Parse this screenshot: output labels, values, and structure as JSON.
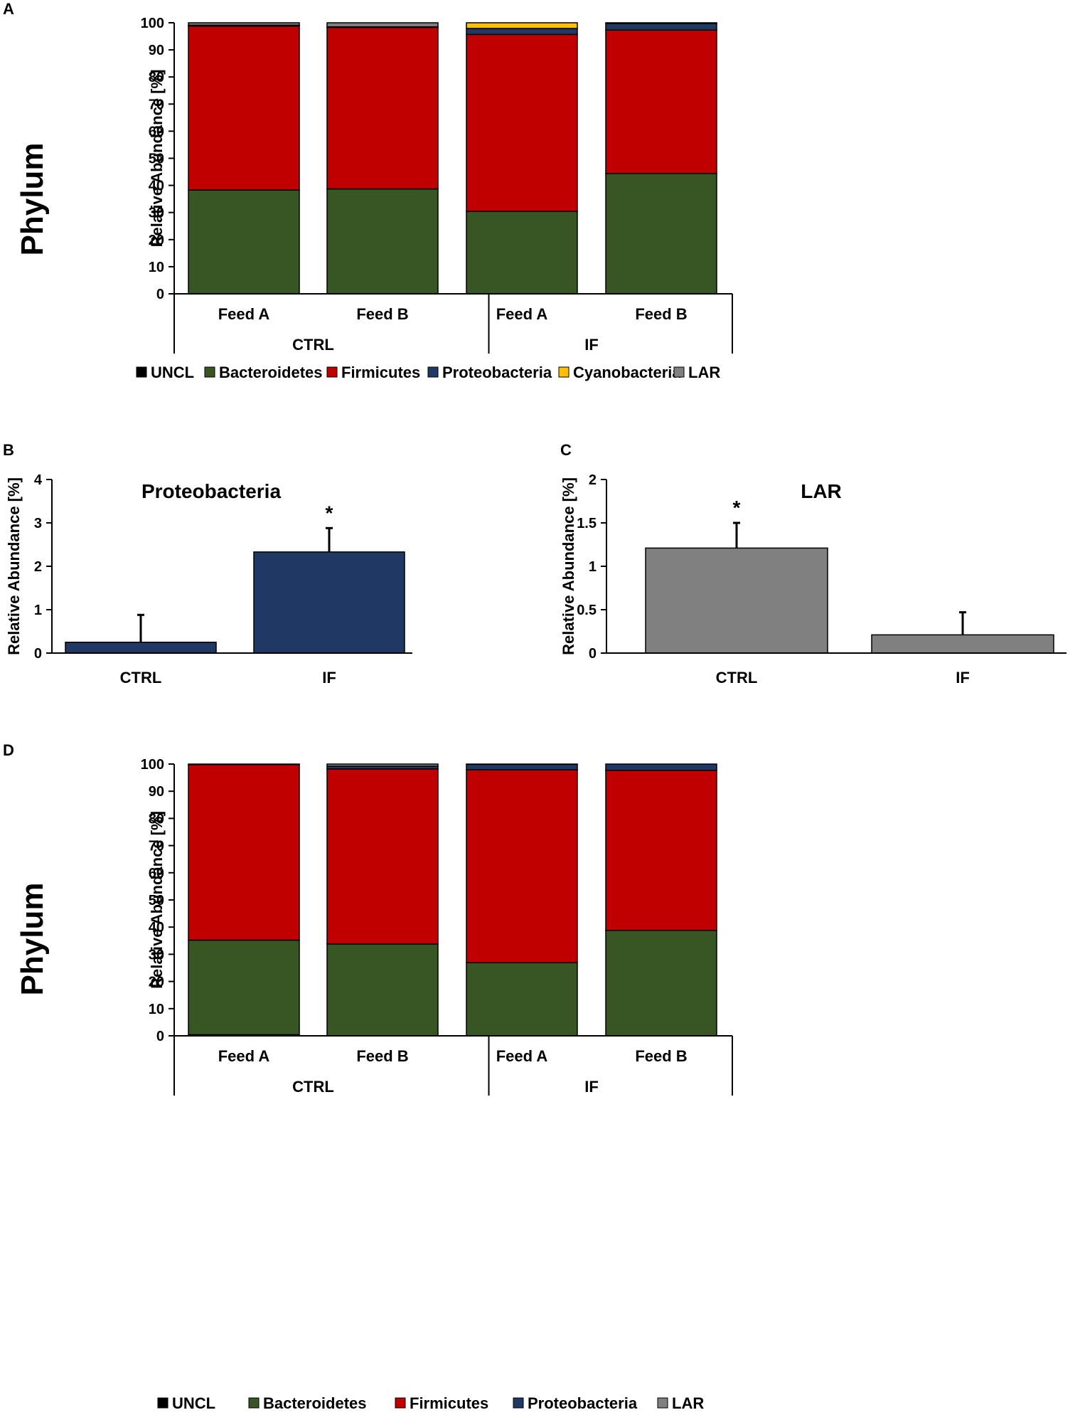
{
  "side_label": "Phylum",
  "chart_data": [
    {
      "id": "A",
      "type": "bar",
      "stacked": true,
      "ylabel": "Relative Abundance [%]",
      "ylim": [
        0,
        100
      ],
      "yticks": [
        0,
        10,
        20,
        30,
        40,
        50,
        60,
        70,
        80,
        90,
        100
      ],
      "categories": [
        "Feed A",
        "Feed B",
        "Feed A",
        "Feed B"
      ],
      "groups": [
        {
          "label": "CTRL",
          "categories": [
            0,
            1
          ]
        },
        {
          "label": "IF",
          "categories": [
            2,
            3
          ]
        }
      ],
      "series": [
        {
          "name": "UNCL",
          "color": "#000000",
          "values": [
            0,
            0,
            0,
            0
          ]
        },
        {
          "name": "Bacteroidetes",
          "color": "#375623",
          "values": [
            38.3,
            38.7,
            30.4,
            44.4
          ]
        },
        {
          "name": "Firmicutes",
          "color": "#C00000",
          "values": [
            60.5,
            59.6,
            65.3,
            52.9
          ]
        },
        {
          "name": "Proteobacteria",
          "color": "#203864",
          "values": [
            0.3,
            0.2,
            2.2,
            2.4
          ]
        },
        {
          "name": "Cyanobacteria",
          "color": "#FFC000",
          "values": [
            0,
            0,
            2.1,
            0
          ]
        },
        {
          "name": "LAR",
          "color": "#808080",
          "values": [
            0.9,
            1.5,
            0,
            0.3
          ]
        }
      ],
      "legend": [
        "UNCL",
        "Bacteroidetes",
        "Firmicutes",
        "Proteobacteria",
        "Cyanobacteria",
        "LAR"
      ]
    },
    {
      "id": "B",
      "type": "bar",
      "title": "Proteobacteria",
      "ylabel": "Relative Abundance [%]",
      "ylim": [
        0,
        4
      ],
      "yticks": [
        0,
        1,
        2,
        3,
        4
      ],
      "categories": [
        "CTRL",
        "IF"
      ],
      "values": [
        0.25,
        2.33
      ],
      "errors": [
        0.63,
        0.55
      ],
      "significance": [
        "",
        "*"
      ],
      "color": "#203864"
    },
    {
      "id": "C",
      "type": "bar",
      "title": "LAR",
      "ylabel": "Relative Abundance [%]",
      "ylim": [
        0,
        2
      ],
      "yticks": [
        "0",
        "0.5",
        "1",
        "1.5",
        "2"
      ],
      "categories": [
        "CTRL",
        "IF"
      ],
      "values": [
        1.21,
        0.21
      ],
      "errors": [
        0.29,
        0.26
      ],
      "significance": [
        "*",
        ""
      ],
      "color": "#808080"
    },
    {
      "id": "D",
      "type": "bar",
      "stacked": true,
      "ylabel": "Relative Abundance [%]",
      "ylim": [
        0,
        100
      ],
      "yticks": [
        0,
        10,
        20,
        30,
        40,
        50,
        60,
        70,
        80,
        90,
        100
      ],
      "categories": [
        "Feed A",
        "Feed B",
        "Feed A",
        "Feed B"
      ],
      "groups": [
        {
          "label": "CTRL",
          "categories": [
            0,
            1
          ]
        },
        {
          "label": "IF",
          "categories": [
            2,
            3
          ]
        }
      ],
      "series": [
        {
          "name": "UNCL",
          "color": "#000000",
          "values": [
            0.4,
            0,
            0,
            0
          ]
        },
        {
          "name": "Bacteroidetes",
          "color": "#375623",
          "values": [
            34.8,
            33.8,
            26.9,
            38.8
          ]
        },
        {
          "name": "Firmicutes",
          "color": "#C00000",
          "values": [
            64.6,
            64.4,
            71.0,
            58.9
          ]
        },
        {
          "name": "Proteobacteria",
          "color": "#203864",
          "values": [
            0.2,
            1.0,
            2.0,
            2.3
          ]
        },
        {
          "name": "Cyanobacteria",
          "color": "#FFC000",
          "values": [
            0,
            0,
            0,
            0
          ]
        },
        {
          "name": "LAR",
          "color": "#808080",
          "values": [
            0,
            0.8,
            0.1,
            0
          ]
        }
      ],
      "legend": [
        "UNCL",
        "Bacteroidetes",
        "Firmicutes",
        "Proteobacteria",
        "LAR"
      ]
    }
  ]
}
